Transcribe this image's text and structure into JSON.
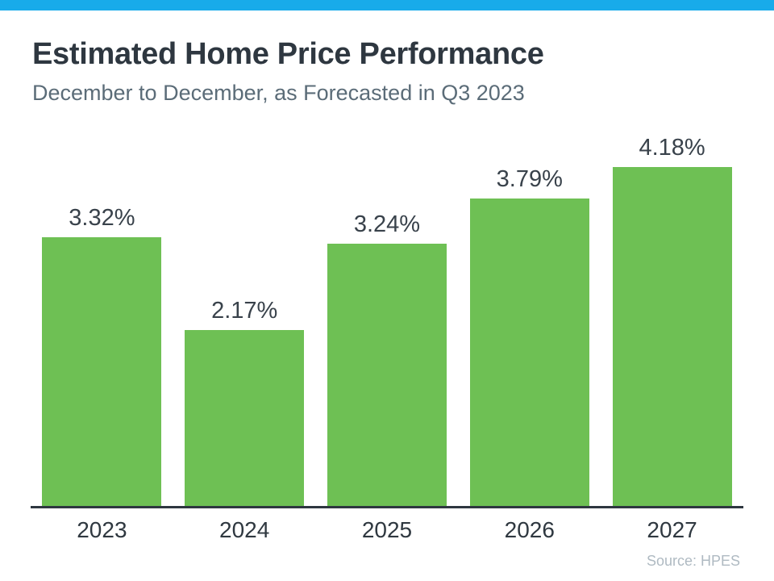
{
  "page": {
    "accent_bar_color": "#18ABEA",
    "background_color": "#FFFFFF"
  },
  "header": {
    "title": "Estimated Home Price Performance",
    "subtitle": "December to December, as Forecasted in Q3 2023"
  },
  "chart_data": {
    "type": "bar",
    "categories": [
      "2023",
      "2024",
      "2025",
      "2026",
      "2027"
    ],
    "values": [
      3.32,
      2.17,
      3.24,
      3.79,
      4.18
    ],
    "value_labels": [
      "3.32%",
      "2.17%",
      "3.24%",
      "3.79%",
      "4.18%"
    ],
    "title": "Estimated Home Price Performance",
    "subtitle": "December to December, as Forecasted in Q3 2023",
    "xlabel": "",
    "ylabel": "",
    "ylim": [
      0,
      4.6
    ],
    "bar_color": "#6EC054",
    "value_label_color": "#39424B",
    "category_label_color": "#2F3840",
    "axis_line_color": "#2E3740",
    "grid": false,
    "legend": false
  },
  "footer": {
    "source_label": "Source: HPES"
  }
}
